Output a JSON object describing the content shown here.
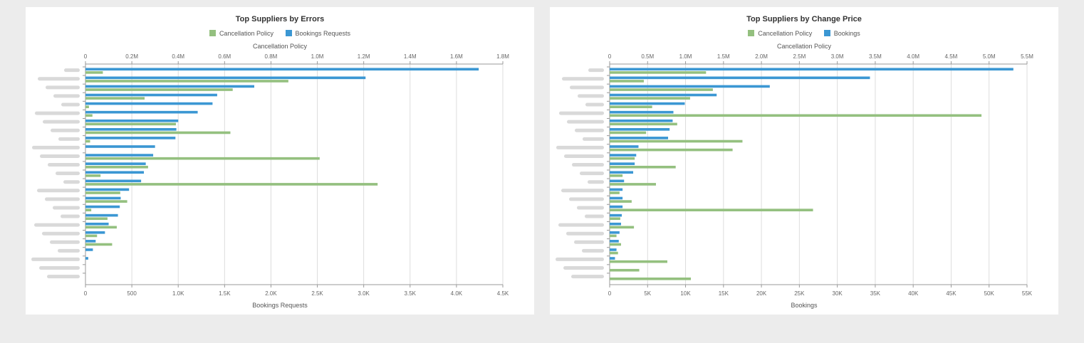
{
  "colors": {
    "cancellation": "#94c07f",
    "bookings": "#3b97d3",
    "grid": "#dddddd",
    "axis": "#999999",
    "label_blur": "#d0d0d0"
  },
  "chart_data": [
    {
      "type": "bar",
      "orientation": "horizontal",
      "title": "Top Suppliers by Errors",
      "legend_position": "top-center",
      "grid": true,
      "top_axis": {
        "label": "Cancellation Policy",
        "ticks": [
          "0",
          "0.2M",
          "0.4M",
          "0.6M",
          "0.8M",
          "1.0M",
          "1.2M",
          "1.4M",
          "1.6M",
          "1.8M"
        ],
        "range": [
          0,
          1800000
        ]
      },
      "bottom_axis": {
        "label": "Bookings Requests",
        "ticks": [
          "0",
          "500",
          "1.0K",
          "1.5K",
          "2.0K",
          "2.5K",
          "3.0K",
          "3.5K",
          "4.0K",
          "4.5K"
        ],
        "range": [
          0,
          4500
        ]
      },
      "category_count": 25,
      "series": [
        {
          "name": "Bookings Requests",
          "color_key": "bookings",
          "axis": "bottom",
          "values": [
            4240,
            3020,
            1820,
            1420,
            1370,
            1210,
            1000,
            980,
            970,
            750,
            730,
            650,
            630,
            600,
            470,
            380,
            370,
            350,
            250,
            210,
            110,
            80,
            30,
            0,
            0
          ]
        },
        {
          "name": "Cancellation Policy",
          "color_key": "cancellation",
          "axis": "top",
          "values": [
            75000,
            875000,
            635000,
            255000,
            15000,
            30000,
            390000,
            625000,
            20000,
            0,
            1010000,
            270000,
            65000,
            1260000,
            150000,
            180000,
            25000,
            95000,
            135000,
            50000,
            115000,
            0,
            0,
            0,
            0
          ]
        }
      ]
    },
    {
      "type": "bar",
      "orientation": "horizontal",
      "title": "Top Suppliers by Change Price",
      "legend_position": "top-center",
      "grid": true,
      "top_axis": {
        "label": "Cancellation Policy",
        "ticks": [
          "0",
          "0.5M",
          "1.0M",
          "1.5M",
          "2.0M",
          "2.5M",
          "3.0M",
          "3.5M",
          "4.0M",
          "4.5M",
          "5.0M",
          "5.5M"
        ],
        "range": [
          0,
          5500000
        ]
      },
      "bottom_axis": {
        "label": "Bookings",
        "ticks": [
          "0",
          "5K",
          "10K",
          "15K",
          "20K",
          "25K",
          "30K",
          "35K",
          "40K",
          "45K",
          "50K",
          "55K"
        ],
        "range": [
          0,
          55000
        ]
      },
      "category_count": 25,
      "series": [
        {
          "name": "Bookings",
          "color_key": "bookings",
          "axis": "bottom",
          "values": [
            53200,
            34300,
            21100,
            14100,
            9900,
            8400,
            8300,
            7900,
            7700,
            3800,
            3500,
            3300,
            3100,
            1900,
            1700,
            1700,
            1700,
            1600,
            1500,
            1300,
            1200,
            900,
            700,
            0,
            0
          ]
        },
        {
          "name": "Cancellation Policy",
          "color_key": "cancellation",
          "axis": "top",
          "values": [
            1270000,
            450000,
            1360000,
            1060000,
            560000,
            4900000,
            890000,
            480000,
            1750000,
            1620000,
            330000,
            870000,
            170000,
            610000,
            130000,
            290000,
            2680000,
            140000,
            320000,
            90000,
            150000,
            110000,
            760000,
            390000,
            1070000
          ]
        }
      ]
    }
  ],
  "legend_order": [
    [
      "Cancellation Policy",
      "Bookings Requests"
    ],
    [
      "Cancellation Policy",
      "Bookings"
    ]
  ]
}
